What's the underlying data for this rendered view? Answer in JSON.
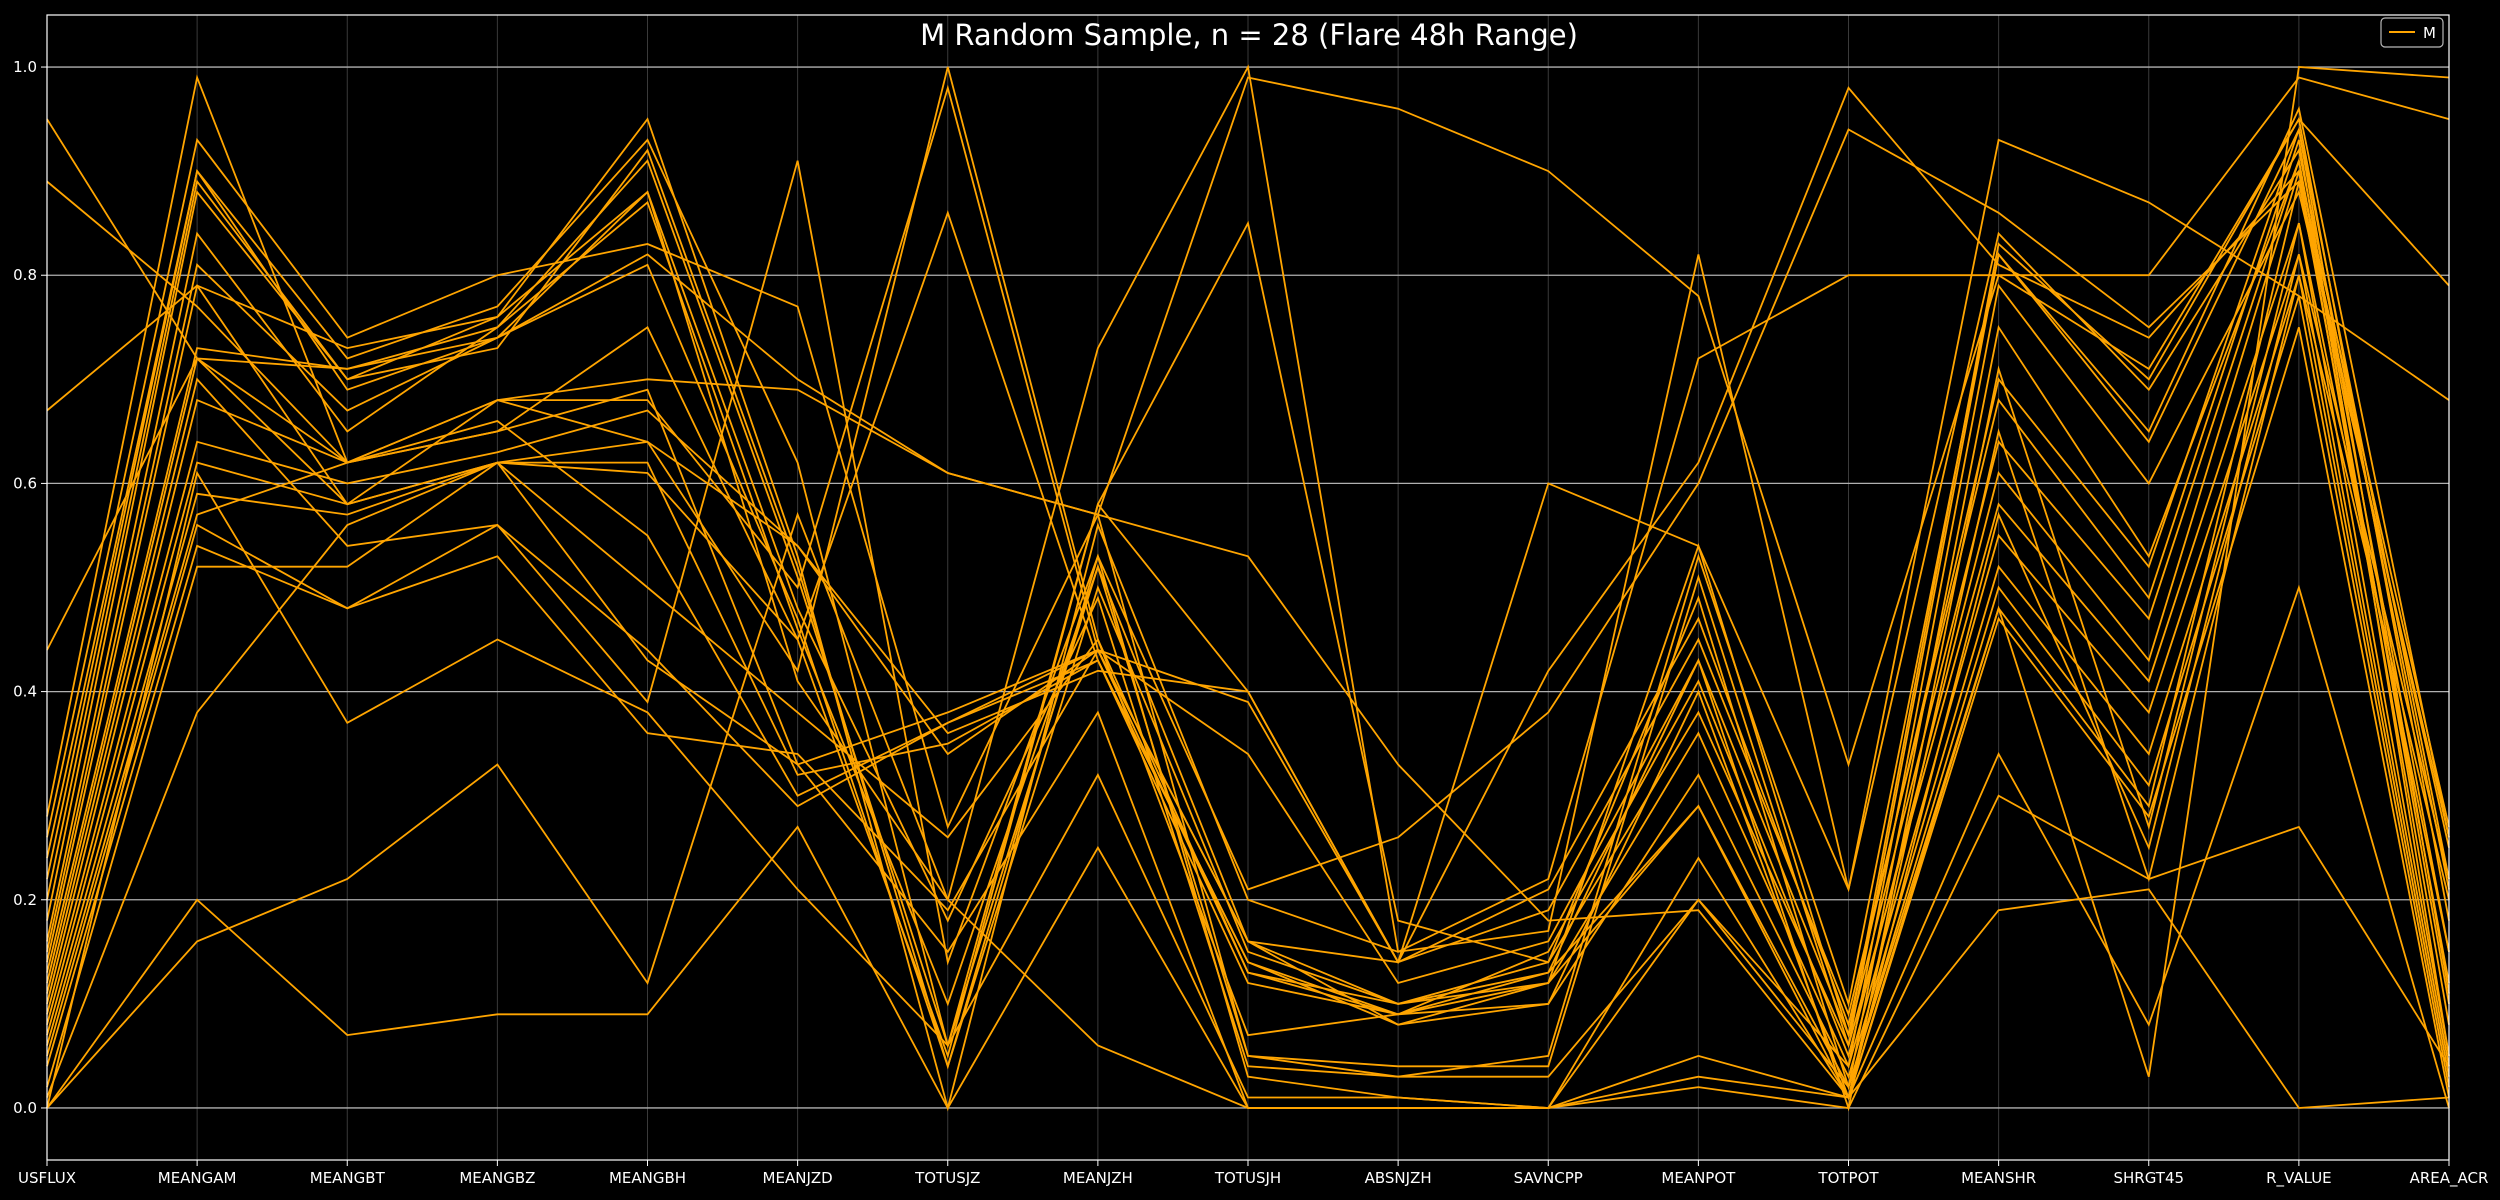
{
  "chart_data": {
    "type": "line",
    "subtype": "parallel-coordinates",
    "title": "M Random Sample, n = 28 (Flare 48h Range)",
    "xlabel": "",
    "ylabel": "",
    "ylim": [
      -0.05,
      1.05
    ],
    "yticks": [
      "0.0",
      "0.2",
      "0.4",
      "0.6",
      "0.8",
      "1.0"
    ],
    "grid": true,
    "legend": {
      "position": "top-right",
      "entries": [
        "M"
      ]
    },
    "colors": {
      "background": "#000000",
      "line": "#ffa500",
      "grid": "#b0b0b0",
      "text": "#ffffff"
    },
    "categories": [
      "USFLUX",
      "MEANGAM",
      "MEANGBT",
      "MEANGBZ",
      "MEANGBH",
      "MEANJZD",
      "TOTUSJZ",
      "MEANJZH",
      "TOTUSJH",
      "ABSNJZH",
      "SAVNCPP",
      "MEANPOT",
      "TOTPOT",
      "MEANSHR",
      "SHRGT45",
      "R_VALUE",
      "AREA_ACR"
    ],
    "series": [
      {
        "values": [
          0.95,
          0.72,
          0.58,
          0.62,
          0.64,
          0.42,
          1.0,
          0.45,
          0.13,
          0.09,
          0.1,
          0.4,
          0.01,
          0.65,
          0.22,
          0.8,
          0.2
        ]
      },
      {
        "values": [
          0.89,
          0.77,
          0.62,
          0.68,
          0.68,
          0.5,
          0.98,
          0.44,
          0.16,
          0.1,
          0.13,
          0.43,
          0.0,
          0.71,
          0.27,
          0.85,
          0.15
        ]
      },
      {
        "values": [
          0.67,
          0.79,
          0.58,
          0.62,
          0.61,
          0.45,
          0.86,
          0.43,
          0.14,
          0.08,
          0.12,
          0.29,
          0.01,
          0.57,
          0.25,
          0.82,
          0.22
        ]
      },
      {
        "values": [
          0.44,
          0.72,
          0.62,
          0.68,
          0.7,
          0.69,
          0.61,
          0.57,
          0.53,
          0.33,
          0.18,
          0.19,
          0.01,
          0.48,
          0.29,
          0.89,
          0.12
        ]
      },
      {
        "values": [
          0.28,
          0.99,
          0.62,
          0.65,
          0.75,
          0.45,
          0.05,
          0.58,
          0.85,
          0.18,
          0.14,
          0.49,
          0.02,
          0.48,
          0.03,
          1.0,
          0.99
        ]
      },
      {
        "values": [
          0.26,
          0.93,
          0.74,
          0.8,
          0.83,
          0.77,
          0.27,
          0.57,
          0.99,
          0.96,
          0.9,
          0.78,
          0.33,
          0.8,
          0.8,
          0.99,
          0.95
        ]
      },
      {
        "values": [
          0.24,
          0.9,
          0.69,
          0.74,
          0.88,
          0.41,
          0.2,
          0.73,
          1.0,
          0.15,
          0.17,
          0.82,
          0.21,
          0.93,
          0.87,
          0.78,
          0.68
        ]
      },
      {
        "values": [
          0.22,
          0.9,
          0.72,
          0.77,
          0.93,
          0.62,
          0.06,
          0.58,
          0.4,
          0.14,
          0.42,
          0.62,
          0.98,
          0.81,
          0.74,
          0.9,
          0.27
        ]
      },
      {
        "values": [
          0.2,
          0.89,
          0.7,
          0.76,
          0.95,
          0.53,
          0.0,
          0.56,
          0.2,
          0.15,
          0.22,
          0.72,
          0.8,
          0.8,
          0.71,
          0.95,
          0.79
        ]
      },
      {
        "values": [
          0.18,
          0.88,
          0.7,
          0.73,
          0.92,
          0.52,
          0.04,
          0.53,
          0.21,
          0.26,
          0.38,
          0.6,
          0.94,
          0.86,
          0.75,
          0.89,
          0.25
        ]
      },
      {
        "values": [
          0.16,
          0.84,
          0.65,
          0.75,
          0.91,
          0.51,
          0.06,
          0.52,
          0.16,
          0.14,
          0.6,
          0.54,
          0.21,
          0.84,
          0.69,
          0.92,
          0.21
        ]
      },
      {
        "values": [
          0.15,
          0.81,
          0.67,
          0.74,
          0.81,
          0.47,
          0.04,
          0.5,
          0.15,
          0.1,
          0.12,
          0.54,
          0.07,
          0.83,
          0.7,
          0.95,
          0.18
        ]
      },
      {
        "values": [
          0.14,
          0.79,
          0.73,
          0.76,
          0.88,
          0.48,
          0.18,
          0.49,
          0.04,
          0.03,
          0.05,
          0.53,
          0.1,
          0.82,
          0.65,
          0.96,
          0.26
        ]
      },
      {
        "values": [
          0.13,
          0.73,
          0.71,
          0.75,
          0.87,
          0.46,
          0.1,
          0.52,
          0.05,
          0.04,
          0.04,
          0.51,
          0.06,
          0.82,
          0.64,
          0.94,
          0.22
        ]
      },
      {
        "values": [
          0.12,
          0.72,
          0.71,
          0.74,
          0.82,
          0.7,
          0.61,
          0.57,
          0.05,
          0.03,
          0.03,
          0.2,
          0.04,
          0.79,
          0.6,
          0.88,
          0.26
        ]
      },
      {
        "values": [
          0.11,
          0.7,
          0.54,
          0.56,
          0.39,
          0.91,
          0.14,
          0.53,
          0.03,
          0.01,
          0.0,
          0.2,
          0.02,
          0.75,
          0.53,
          0.91,
          0.15
        ]
      },
      {
        "values": [
          0.1,
          0.68,
          0.62,
          0.65,
          0.69,
          0.33,
          0.38,
          0.44,
          0.39,
          0.14,
          0.21,
          0.47,
          0.08,
          0.7,
          0.52,
          0.94,
          0.11
        ]
      },
      {
        "values": [
          0.09,
          0.64,
          0.6,
          0.63,
          0.67,
          0.54,
          0.36,
          0.42,
          0.4,
          0.14,
          0.19,
          0.45,
          0.09,
          0.68,
          0.49,
          0.93,
          0.05
        ]
      },
      {
        "values": [
          0.08,
          0.62,
          0.58,
          0.68,
          0.64,
          0.54,
          0.34,
          0.44,
          0.34,
          0.12,
          0.16,
          0.43,
          0.07,
          0.64,
          0.47,
          0.91,
          0.1
        ]
      },
      {
        "values": [
          0.07,
          0.59,
          0.57,
          0.62,
          0.62,
          0.32,
          0.35,
          0.43,
          0.14,
          0.09,
          0.15,
          0.41,
          0.05,
          0.61,
          0.43,
          0.9,
          0.08
        ]
      },
      {
        "values": [
          0.06,
          0.57,
          0.62,
          0.66,
          0.55,
          0.3,
          0.37,
          0.44,
          0.13,
          0.1,
          0.14,
          0.38,
          0.06,
          0.58,
          0.41,
          0.85,
          0.05
        ]
      },
      {
        "values": [
          0.05,
          0.56,
          0.48,
          0.56,
          0.44,
          0.29,
          0.37,
          0.43,
          0.12,
          0.09,
          0.12,
          0.36,
          0.04,
          0.55,
          0.38,
          0.82,
          0.04
        ]
      },
      {
        "values": [
          0.04,
          0.54,
          0.48,
          0.53,
          0.36,
          0.34,
          0.19,
          0.44,
          0.16,
          0.08,
          0.1,
          0.32,
          0.03,
          0.52,
          0.34,
          0.8,
          0.03
        ]
      },
      {
        "values": [
          0.02,
          0.52,
          0.52,
          0.62,
          0.5,
          0.38,
          0.26,
          0.45,
          0.07,
          0.09,
          0.13,
          0.29,
          0.02,
          0.5,
          0.31,
          0.78,
          0.02
        ]
      },
      {
        "values": [
          0.01,
          0.38,
          0.56,
          0.62,
          0.43,
          0.33,
          0.15,
          0.38,
          0.0,
          0.0,
          0.0,
          0.24,
          0.01,
          0.47,
          0.28,
          0.75,
          0.01
        ]
      },
      {
        "values": [
          0.0,
          0.61,
          0.37,
          0.45,
          0.38,
          0.21,
          0.06,
          0.32,
          0.01,
          0.01,
          0.0,
          0.05,
          0.01,
          0.34,
          0.08,
          0.5,
          0.0
        ]
      },
      {
        "values": [
          0.0,
          0.2,
          0.07,
          0.09,
          0.09,
          0.27,
          0.0,
          0.25,
          0.0,
          0.0,
          0.0,
          0.02,
          0.0,
          0.3,
          0.22,
          0.27,
          0.04
        ]
      },
      {
        "values": [
          0.0,
          0.16,
          0.22,
          0.33,
          0.12,
          0.57,
          0.2,
          0.06,
          0.0,
          0.0,
          0.0,
          0.03,
          0.01,
          0.19,
          0.21,
          0.0,
          0.01
        ]
      }
    ]
  }
}
